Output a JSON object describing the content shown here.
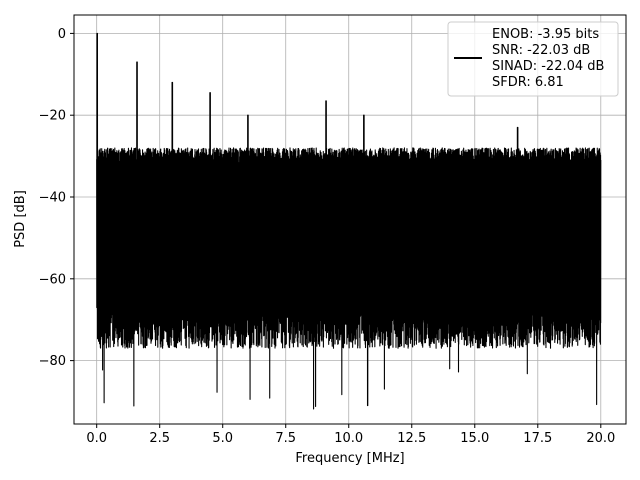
{
  "chart_data": {
    "type": "line",
    "title": "",
    "xlabel": "Frequency [MHz]",
    "ylabel": "PSD [dB]",
    "xlim": [
      -0.9,
      21.0
    ],
    "ylim": [
      -95.5,
      4.5
    ],
    "xticks": [
      0.0,
      2.5,
      5.0,
      7.5,
      10.0,
      12.5,
      15.0,
      17.5,
      20.0
    ],
    "xtick_labels": [
      "0.0",
      "2.5",
      "5.0",
      "7.5",
      "10.0",
      "12.5",
      "15.0",
      "17.5",
      "20.0"
    ],
    "yticks": [
      0,
      -20,
      -40,
      -60,
      -80
    ],
    "ytick_labels": [
      "0",
      "−20",
      "−40",
      "−60",
      "−80"
    ],
    "grid": true,
    "legend_position": "top-right",
    "series": [
      {
        "name": "",
        "color": "#000000",
        "x_range": [
          0.0,
          20.0
        ],
        "noise_band_top_db": -30,
        "noise_band_bottom_db": -70,
        "deep_min_db": -91,
        "peaks": [
          {
            "x": 0.02,
            "y": 0
          },
          {
            "x": 1.6,
            "y": -7
          },
          {
            "x": 3.0,
            "y": -12
          },
          {
            "x": 4.5,
            "y": -14.5
          },
          {
            "x": 6.0,
            "y": -20
          },
          {
            "x": 9.1,
            "y": -16.5
          },
          {
            "x": 10.6,
            "y": -20
          },
          {
            "x": 16.7,
            "y": -23
          }
        ]
      }
    ],
    "legend_lines": [
      "ENOB: -3.95 bits",
      "SNR: -22.03 dB",
      "SINAD: -22.04 dB",
      "SFDR: 6.81"
    ]
  }
}
